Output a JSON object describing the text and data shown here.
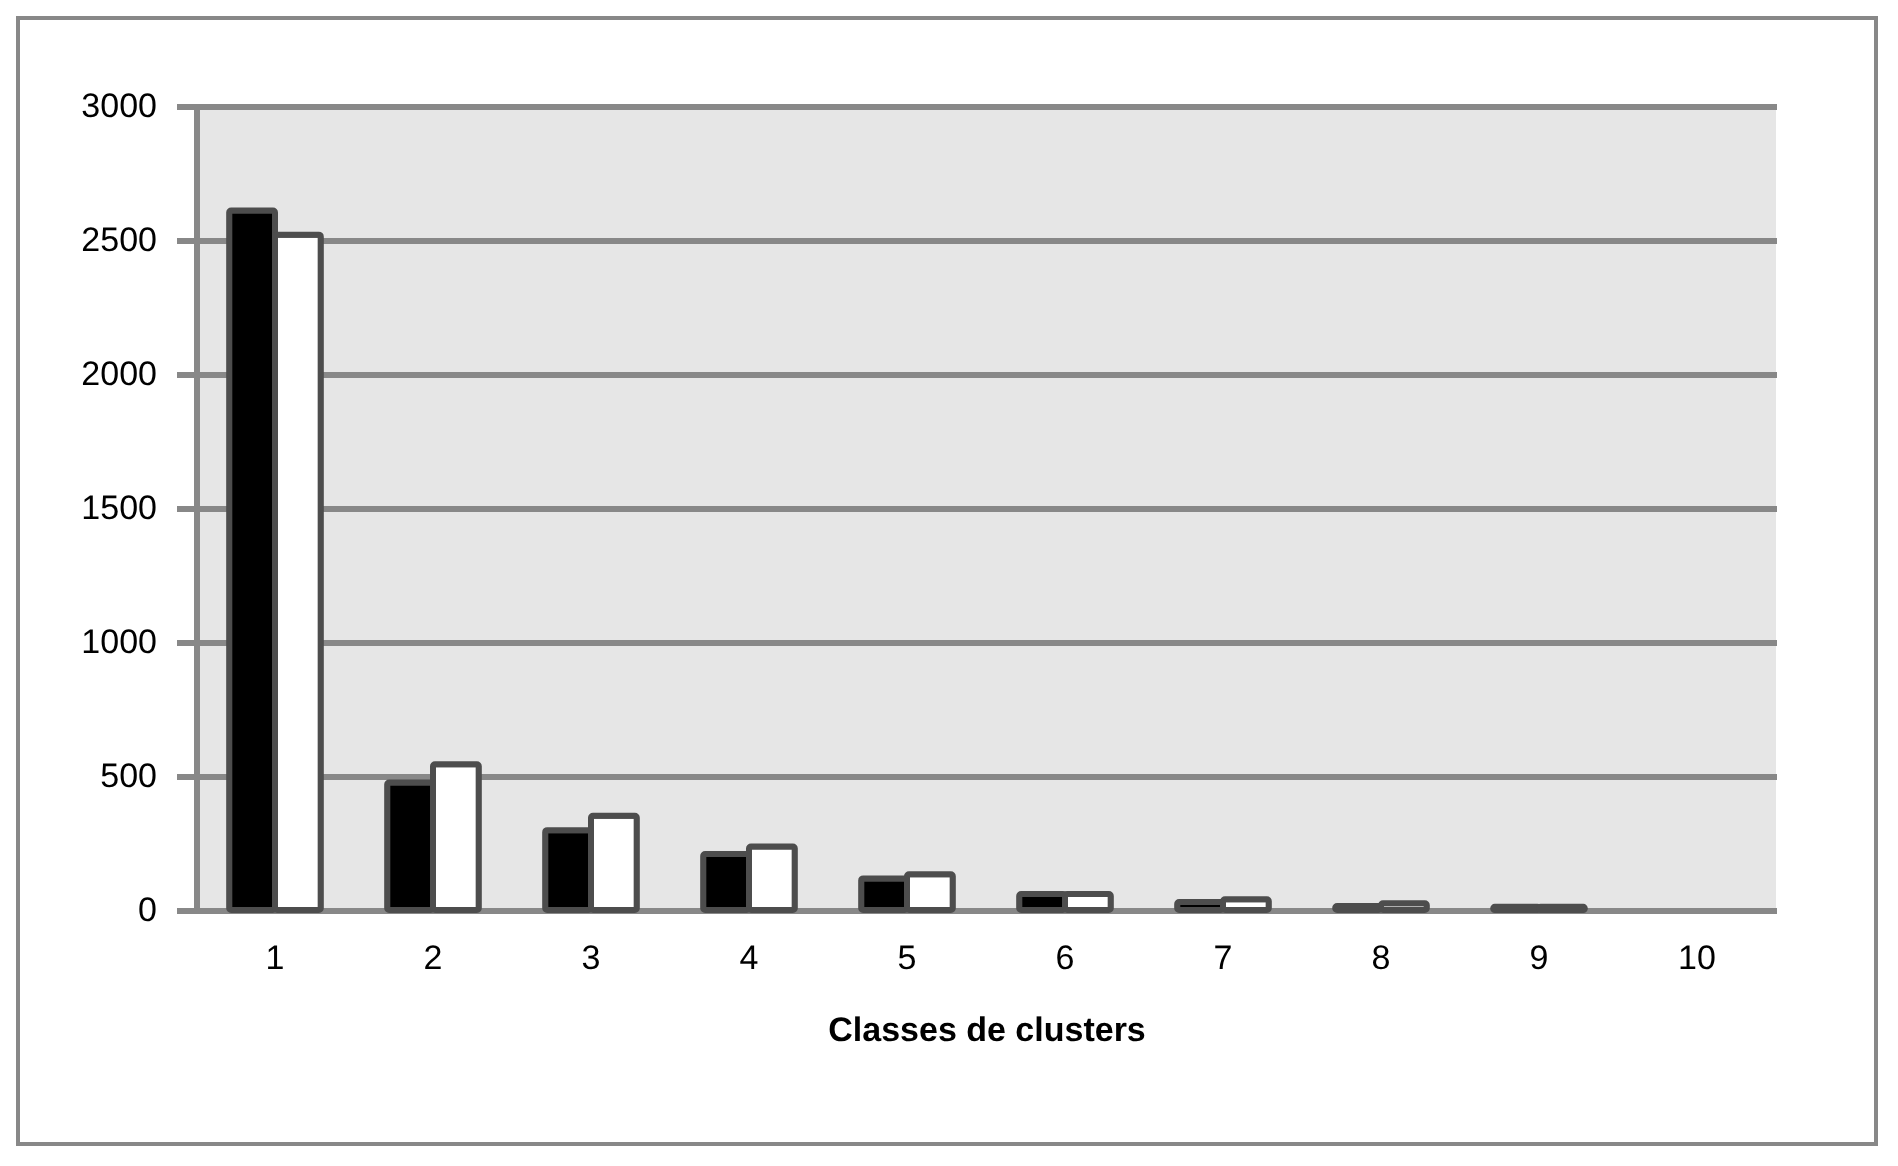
{
  "chart_data": {
    "type": "bar",
    "xlabel": "Classes de clusters",
    "categories": [
      "1",
      "2",
      "3",
      "4",
      "5",
      "6",
      "7",
      "8",
      "9",
      "10"
    ],
    "series": [
      {
        "color": "#000000",
        "values": [
          2610,
          476,
          298,
          209,
          118,
          60,
          30,
          15,
          12,
          null
        ]
      },
      {
        "color": "#ffffff",
        "values": [
          2520,
          544,
          352,
          237,
          133,
          60,
          40,
          25,
          12,
          null
        ]
      }
    ],
    "ylim": [
      0,
      3000
    ],
    "yticks": [
      0,
      500,
      1000,
      1500,
      2000,
      2500,
      3000
    ],
    "grid": "y",
    "legend": false
  }
}
